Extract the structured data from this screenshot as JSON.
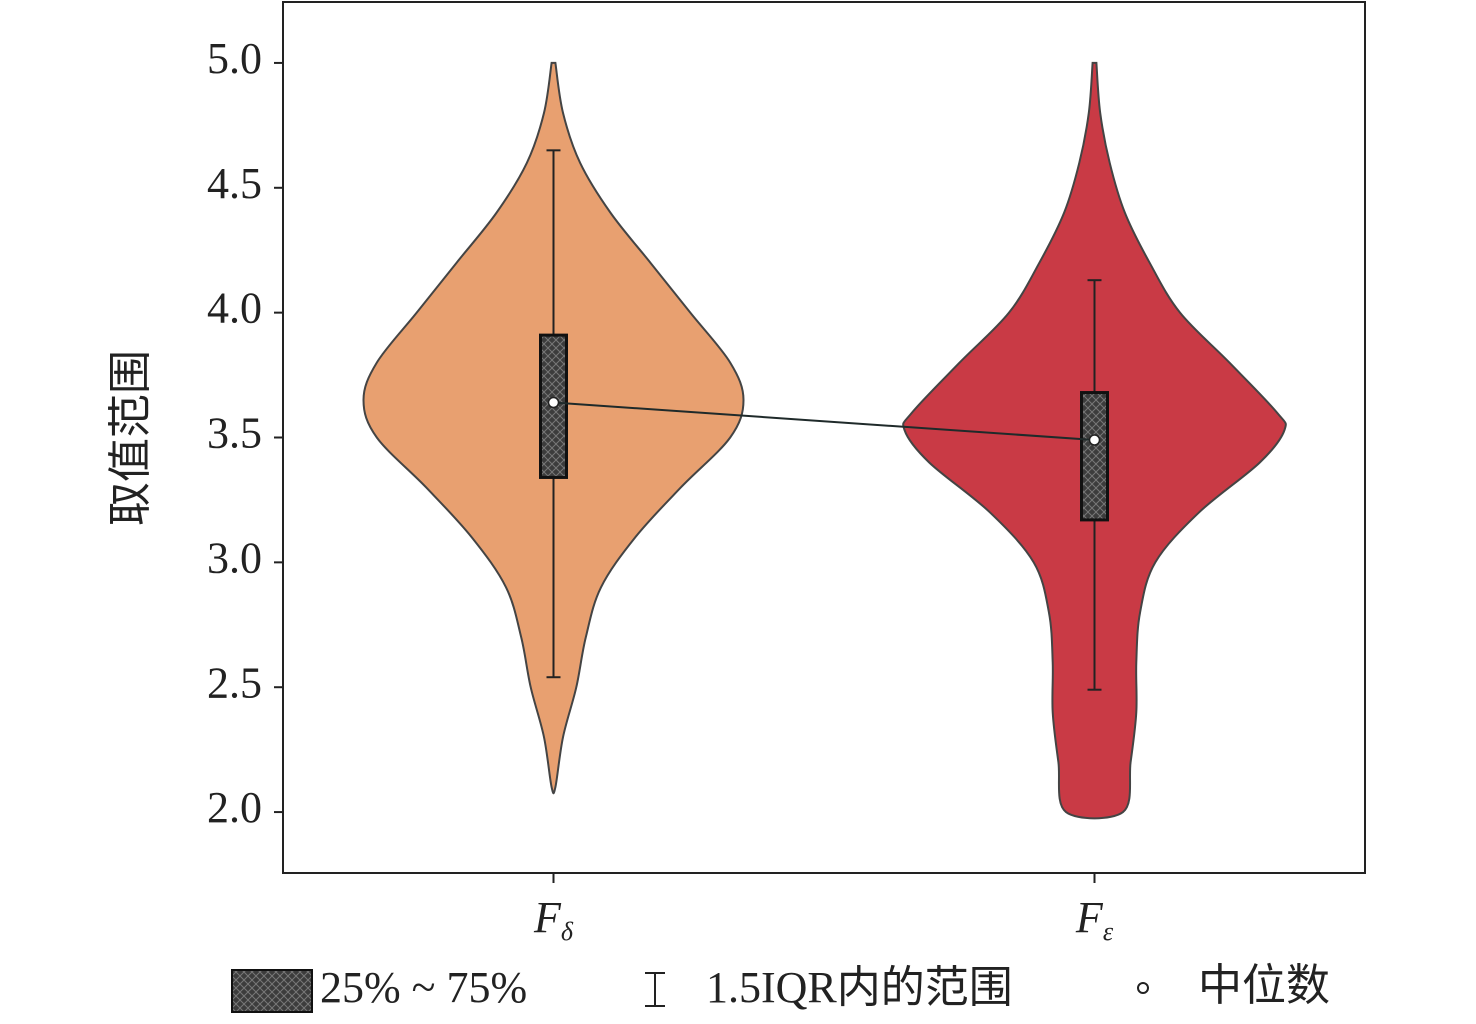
{
  "chart_data": {
    "type": "violin",
    "ylabel": "取值范围",
    "categories": [
      "Fδ",
      "Fε"
    ],
    "ylim": [
      1.756,
      5.244
    ],
    "yticks": [
      {
        "value": 2,
        "label": "2.0"
      },
      2.5,
      {
        "value": 3,
        "label": "3.0"
      },
      3.5,
      {
        "value": 4,
        "label": "4.0"
      },
      4.5,
      {
        "value": 5,
        "label": "5.0"
      }
    ],
    "violins": [
      {
        "color": "#e8a070",
        "density_y": [
          5.0,
          4.8,
          4.6,
          4.4,
          4.2,
          4.0,
          3.8,
          3.65,
          3.5,
          3.3,
          3.1,
          2.9,
          2.7,
          2.5,
          2.3,
          2.1
        ],
        "density": [
          0.01,
          0.05,
          0.14,
          0.3,
          0.51,
          0.72,
          0.93,
          1.0,
          0.93,
          0.67,
          0.43,
          0.25,
          0.17,
          0.12,
          0.05,
          0.01
        ],
        "whisker_low": 2.54,
        "q1": 3.34,
        "median": 3.64,
        "q3": 3.91,
        "whisker_high": 4.65
      },
      {
        "color": "#c93a45",
        "density_y": [
          5.0,
          4.8,
          4.6,
          4.4,
          4.2,
          4.0,
          3.8,
          3.6,
          3.53,
          3.4,
          3.2,
          3.0,
          2.8,
          2.6,
          2.4,
          2.2,
          2.0
        ],
        "density": [
          0.01,
          0.03,
          0.08,
          0.16,
          0.29,
          0.45,
          0.71,
          0.96,
          1.0,
          0.87,
          0.55,
          0.32,
          0.24,
          0.22,
          0.22,
          0.19,
          0.15
        ],
        "whisker_low": 2.49,
        "q1": 3.17,
        "median": 3.49,
        "q3": 3.68,
        "whisker_high": 4.13
      }
    ],
    "box_color": "#3c3c3c",
    "legend_labels": [
      "25% ~ 75%",
      "1.5IQR内的范围",
      "中位数"
    ]
  }
}
